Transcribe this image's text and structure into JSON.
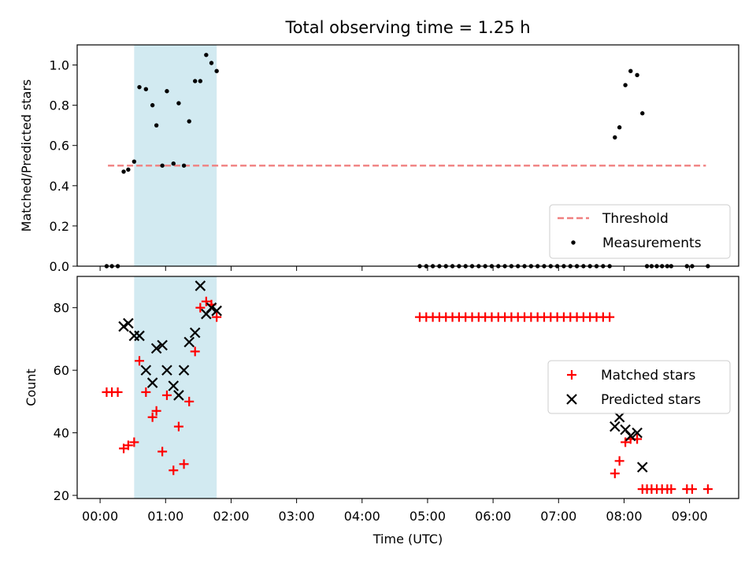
{
  "figure": {
    "title": "Total observing time = 1.25 h",
    "xlabel": "Time (UTC)",
    "x_ticks": [
      "00:00",
      "01:00",
      "02:00",
      "03:00",
      "04:00",
      "05:00",
      "06:00",
      "07:00",
      "08:00",
      "09:00"
    ],
    "xlim_hours": [
      -0.35,
      9.75
    ],
    "highlight_span_hours": [
      0.52,
      1.78
    ],
    "highlight_color": "#add8e6"
  },
  "chart_data": [
    {
      "type": "scatter",
      "ylabel": "Matched/Predicted stars",
      "ylim": [
        0,
        1.1
      ],
      "y_ticks": [
        "0.0",
        "0.2",
        "0.4",
        "0.6",
        "0.8",
        "1.0"
      ],
      "y_tick_values": [
        0,
        0.2,
        0.4,
        0.6,
        0.8,
        1.0
      ],
      "legend_position": "lower-right",
      "threshold": {
        "name": "Threshold",
        "value": 0.5,
        "x_range_hours": [
          0.12,
          9.25
        ],
        "color": "#f08080"
      },
      "series": [
        {
          "name": "Measurements",
          "color": "#000000",
          "x_hours": [
            0.1,
            0.18,
            0.27,
            0.36,
            0.43,
            0.52,
            0.6,
            0.7,
            0.8,
            0.86,
            0.95,
            1.02,
            1.12,
            1.2,
            1.28,
            1.36,
            1.45,
            1.53,
            1.62,
            1.7,
            1.78,
            4.88,
            4.98,
            5.08,
            5.18,
            5.28,
            5.38,
            5.48,
            5.58,
            5.68,
            5.78,
            5.88,
            5.98,
            6.08,
            6.18,
            6.28,
            6.38,
            6.48,
            6.58,
            6.68,
            6.78,
            6.88,
            6.98,
            7.08,
            7.18,
            7.28,
            7.38,
            7.48,
            7.58,
            7.68,
            7.78,
            7.86,
            7.93,
            8.02,
            8.1,
            8.2,
            8.28,
            8.35,
            8.42,
            8.5,
            8.58,
            8.66,
            8.72,
            8.96,
            9.04,
            9.28
          ],
          "y": [
            0,
            0,
            0,
            0.47,
            0.48,
            0.52,
            0.89,
            0.88,
            0.8,
            0.7,
            0.5,
            0.87,
            0.51,
            0.81,
            0.5,
            0.72,
            0.92,
            0.92,
            1.05,
            1.01,
            0.97,
            0,
            0,
            0,
            0,
            0,
            0,
            0,
            0,
            0,
            0,
            0,
            0,
            0,
            0,
            0,
            0,
            0,
            0,
            0,
            0,
            0,
            0,
            0,
            0,
            0,
            0,
            0,
            0,
            0,
            0,
            0.64,
            0.69,
            0.9,
            0.97,
            0.95,
            0.76,
            0,
            0,
            0,
            0,
            0,
            0,
            0,
            0,
            0
          ]
        }
      ]
    },
    {
      "type": "scatter",
      "ylabel": "Count",
      "ylim": [
        19,
        90
      ],
      "y_ticks": [
        "20",
        "40",
        "60",
        "80"
      ],
      "y_tick_values": [
        20,
        40,
        60,
        80
      ],
      "legend_position": "center-right",
      "series": [
        {
          "name": "Matched stars",
          "marker": "plus",
          "color": "#ff0000",
          "x_hours": [
            0.1,
            0.18,
            0.27,
            0.36,
            0.43,
            0.52,
            0.6,
            0.7,
            0.8,
            0.86,
            0.95,
            1.02,
            1.12,
            1.2,
            1.28,
            1.36,
            1.45,
            1.53,
            1.62,
            1.7,
            1.78,
            4.88,
            4.98,
            5.08,
            5.18,
            5.28,
            5.38,
            5.48,
            5.58,
            5.68,
            5.78,
            5.88,
            5.98,
            6.08,
            6.18,
            6.28,
            6.38,
            6.48,
            6.58,
            6.68,
            6.78,
            6.88,
            6.98,
            7.08,
            7.18,
            7.28,
            7.38,
            7.48,
            7.58,
            7.68,
            7.78,
            7.86,
            7.93,
            8.02,
            8.1,
            8.2,
            8.28,
            8.35,
            8.42,
            8.5,
            8.58,
            8.66,
            8.72,
            8.96,
            9.04,
            9.28
          ],
          "y": [
            53,
            53,
            53,
            35,
            36,
            37,
            63,
            53,
            45,
            47,
            34,
            52,
            28,
            42,
            30,
            50,
            66,
            80,
            82,
            81,
            77,
            77,
            77,
            77,
            77,
            77,
            77,
            77,
            77,
            77,
            77,
            77,
            77,
            77,
            77,
            77,
            77,
            77,
            77,
            77,
            77,
            77,
            77,
            77,
            77,
            77,
            77,
            77,
            77,
            77,
            77,
            27,
            31,
            37,
            38,
            38,
            22,
            22,
            22,
            22,
            22,
            22,
            22,
            22,
            22,
            22
          ]
        },
        {
          "name": "Predicted stars",
          "marker": "x",
          "color": "#000000",
          "x_hours": [
            0.36,
            0.43,
            0.52,
            0.6,
            0.7,
            0.8,
            0.86,
            0.95,
            1.02,
            1.12,
            1.2,
            1.28,
            1.36,
            1.45,
            1.53,
            1.62,
            1.7,
            1.78,
            7.86,
            7.93,
            8.02,
            8.1,
            8.2,
            8.28
          ],
          "y": [
            74,
            75,
            71,
            71,
            60,
            56,
            67,
            68,
            60,
            55,
            52,
            60,
            69,
            72,
            87,
            78,
            80,
            79,
            42,
            45,
            41,
            39,
            40,
            29
          ]
        }
      ]
    }
  ]
}
